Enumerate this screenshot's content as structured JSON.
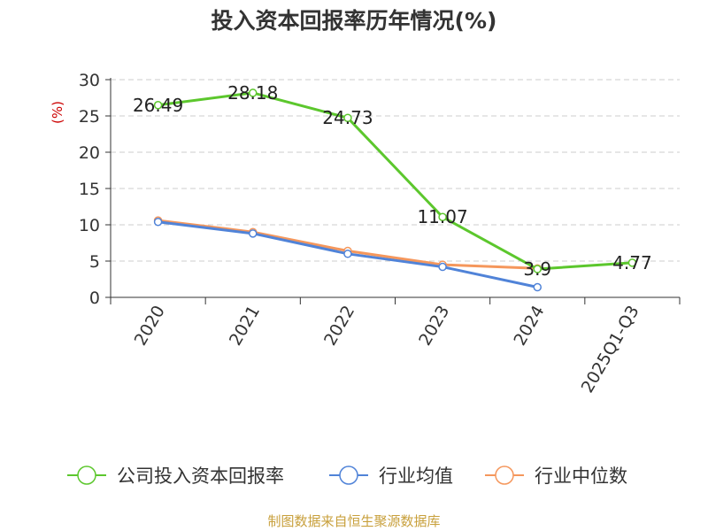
{
  "title": "投入资本回报率历年情况(%)",
  "source": "制图数据来自恒生聚源数据库",
  "chart_data": {
    "type": "line",
    "ylabel": "(%)",
    "xlabel": "",
    "ylim": [
      0,
      30
    ],
    "yticks": [
      0,
      5,
      10,
      15,
      20,
      25,
      30
    ],
    "grid": true,
    "legend_position": "bottom",
    "categories": [
      "2020",
      "2021",
      "2022",
      "2023",
      "2024",
      "2025Q1-Q3"
    ],
    "series": [
      {
        "name": "公司投入资本回报率",
        "color": "#5cc72d",
        "values": [
          26.49,
          28.18,
          24.73,
          11.07,
          3.9,
          4.77
        ],
        "labels": [
          "26.49",
          "28.18",
          "24.73",
          "11.07",
          "3.9",
          "4.77"
        ]
      },
      {
        "name": "行业均值",
        "color": "#5083d8",
        "values": [
          10.4,
          8.8,
          6.0,
          4.2,
          1.4,
          null
        ]
      },
      {
        "name": "行业中位数",
        "color": "#f5975c",
        "values": [
          10.6,
          9.0,
          6.4,
          4.5,
          4.0,
          null
        ]
      }
    ]
  }
}
